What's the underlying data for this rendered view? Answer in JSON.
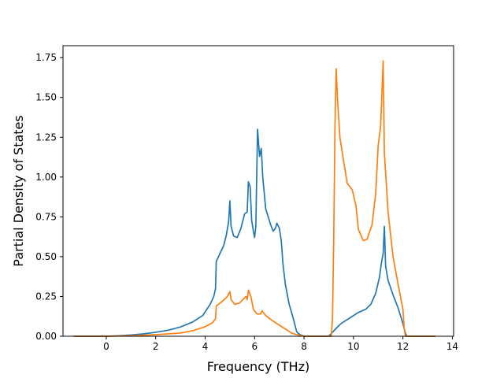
{
  "chart_data": {
    "type": "line",
    "title": "",
    "xlabel": "Frequency (THz)",
    "ylabel": "Partial Density of States",
    "xlim": [
      -1.75,
      14.05
    ],
    "ylim": [
      0,
      1.825
    ],
    "xticks": [
      0,
      2,
      4,
      6,
      8,
      10,
      12,
      14
    ],
    "yticks": [
      0.0,
      0.25,
      0.5,
      0.75,
      1.0,
      1.25,
      1.5,
      1.75
    ],
    "xtick_labels": [
      "0",
      "2",
      "4",
      "6",
      "8",
      "10",
      "12",
      "14"
    ],
    "ytick_labels": [
      "0.00",
      "0.25",
      "0.50",
      "0.75",
      "1.00",
      "1.25",
      "1.50",
      "1.75"
    ],
    "grid": false,
    "legend": false,
    "series": [
      {
        "color": "#1f77b4",
        "points": [
          [
            -1.3,
            0.0
          ],
          [
            0.0,
            0.0
          ],
          [
            0.5,
            0.003
          ],
          [
            1.0,
            0.008
          ],
          [
            1.5,
            0.015
          ],
          [
            2.0,
            0.025
          ],
          [
            2.5,
            0.038
          ],
          [
            3.0,
            0.058
          ],
          [
            3.5,
            0.09
          ],
          [
            3.9,
            0.13
          ],
          [
            4.2,
            0.2
          ],
          [
            4.35,
            0.25
          ],
          [
            4.42,
            0.3
          ],
          [
            4.45,
            0.47
          ],
          [
            4.6,
            0.52
          ],
          [
            4.75,
            0.57
          ],
          [
            4.85,
            0.63
          ],
          [
            4.95,
            0.72
          ],
          [
            5.0,
            0.85
          ],
          [
            5.05,
            0.69
          ],
          [
            5.15,
            0.63
          ],
          [
            5.3,
            0.62
          ],
          [
            5.45,
            0.68
          ],
          [
            5.6,
            0.77
          ],
          [
            5.7,
            0.78
          ],
          [
            5.75,
            0.97
          ],
          [
            5.82,
            0.94
          ],
          [
            5.88,
            0.73
          ],
          [
            5.95,
            0.66
          ],
          [
            6.0,
            0.62
          ],
          [
            6.05,
            0.69
          ],
          [
            6.12,
            1.3
          ],
          [
            6.2,
            1.13
          ],
          [
            6.27,
            1.18
          ],
          [
            6.33,
            1.0
          ],
          [
            6.45,
            0.8
          ],
          [
            6.55,
            0.75
          ],
          [
            6.65,
            0.7
          ],
          [
            6.75,
            0.66
          ],
          [
            6.85,
            0.68
          ],
          [
            6.9,
            0.71
          ],
          [
            7.0,
            0.68
          ],
          [
            7.08,
            0.6
          ],
          [
            7.15,
            0.45
          ],
          [
            7.25,
            0.32
          ],
          [
            7.4,
            0.2
          ],
          [
            7.55,
            0.12
          ],
          [
            7.65,
            0.06
          ],
          [
            7.7,
            0.03
          ],
          [
            7.75,
            0.02
          ],
          [
            7.85,
            0.01
          ],
          [
            8.0,
            0.0
          ],
          [
            9.0,
            0.0
          ],
          [
            9.3,
            0.05
          ],
          [
            9.5,
            0.08
          ],
          [
            9.7,
            0.1
          ],
          [
            9.9,
            0.12
          ],
          [
            10.2,
            0.15
          ],
          [
            10.5,
            0.17
          ],
          [
            10.7,
            0.2
          ],
          [
            10.9,
            0.27
          ],
          [
            11.05,
            0.37
          ],
          [
            11.12,
            0.45
          ],
          [
            11.2,
            0.52
          ],
          [
            11.25,
            0.69
          ],
          [
            11.3,
            0.44
          ],
          [
            11.4,
            0.35
          ],
          [
            11.6,
            0.26
          ],
          [
            11.8,
            0.18
          ],
          [
            12.0,
            0.08
          ],
          [
            12.08,
            0.03
          ],
          [
            12.15,
            0.0
          ],
          [
            13.3,
            0.0
          ]
        ]
      },
      {
        "color": "#ff7f0e",
        "points": [
          [
            -1.3,
            0.0
          ],
          [
            0.0,
            0.0
          ],
          [
            1.0,
            0.003
          ],
          [
            2.0,
            0.01
          ],
          [
            3.0,
            0.02
          ],
          [
            3.5,
            0.035
          ],
          [
            4.0,
            0.06
          ],
          [
            4.3,
            0.085
          ],
          [
            4.42,
            0.11
          ],
          [
            4.45,
            0.19
          ],
          [
            4.7,
            0.22
          ],
          [
            4.9,
            0.25
          ],
          [
            5.0,
            0.28
          ],
          [
            5.05,
            0.23
          ],
          [
            5.2,
            0.2
          ],
          [
            5.4,
            0.21
          ],
          [
            5.65,
            0.25
          ],
          [
            5.7,
            0.23
          ],
          [
            5.75,
            0.29
          ],
          [
            5.85,
            0.25
          ],
          [
            5.95,
            0.17
          ],
          [
            6.1,
            0.14
          ],
          [
            6.25,
            0.14
          ],
          [
            6.3,
            0.16
          ],
          [
            6.45,
            0.13
          ],
          [
            6.7,
            0.1
          ],
          [
            7.0,
            0.07
          ],
          [
            7.3,
            0.04
          ],
          [
            7.5,
            0.02
          ],
          [
            7.7,
            0.01
          ],
          [
            8.0,
            0.0
          ],
          [
            9.1,
            0.0
          ],
          [
            9.15,
            0.1
          ],
          [
            9.2,
            0.6
          ],
          [
            9.25,
            1.3
          ],
          [
            9.3,
            1.68
          ],
          [
            9.35,
            1.5
          ],
          [
            9.45,
            1.25
          ],
          [
            9.6,
            1.1
          ],
          [
            9.75,
            0.96
          ],
          [
            9.95,
            0.92
          ],
          [
            10.1,
            0.82
          ],
          [
            10.2,
            0.67
          ],
          [
            10.4,
            0.6
          ],
          [
            10.55,
            0.61
          ],
          [
            10.75,
            0.7
          ],
          [
            10.9,
            0.9
          ],
          [
            11.0,
            1.2
          ],
          [
            11.1,
            1.32
          ],
          [
            11.2,
            1.73
          ],
          [
            11.25,
            1.15
          ],
          [
            11.4,
            0.78
          ],
          [
            11.6,
            0.5
          ],
          [
            11.8,
            0.33
          ],
          [
            12.0,
            0.17
          ],
          [
            12.05,
            0.05
          ],
          [
            12.1,
            0.0
          ],
          [
            13.3,
            0.0
          ]
        ]
      }
    ]
  }
}
